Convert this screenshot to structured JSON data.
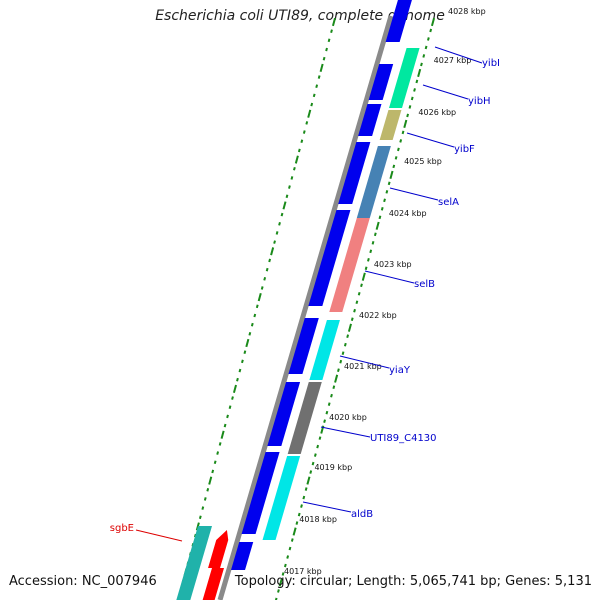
{
  "title": "Escherichia coli UTI89, complete genome",
  "footer": {
    "accession": "Accession: NC_007946",
    "summary": "Topology: circular; Length: 5,065,741 bp; Genes: 5,131"
  },
  "colors": {
    "backbone": "#888888",
    "cds_blue": "#0000ee",
    "tick_green": "#1a8a1a",
    "gene_label_blue": "#0000cc",
    "gene_label_red": "#dd0000"
  },
  "scale_labels": [
    "4028 kbp",
    "4027 kbp",
    "4026 kbp",
    "4025 kbp",
    "4024 kbp",
    "4023 kbp",
    "4022 kbp",
    "4021 kbp",
    "4020 kbp",
    "4019 kbp",
    "4018 kbp",
    "4017 kbp"
  ],
  "gene_labels": [
    {
      "text": "yibI",
      "color": "#0000cc"
    },
    {
      "text": "yibH",
      "color": "#0000cc"
    },
    {
      "text": "yibF",
      "color": "#0000cc"
    },
    {
      "text": "selA",
      "color": "#0000cc"
    },
    {
      "text": "selB",
      "color": "#0000cc"
    },
    {
      "text": "yiaY",
      "color": "#0000cc"
    },
    {
      "text": "UTI89_C4130",
      "color": "#0000cc"
    },
    {
      "text": "aldB",
      "color": "#0000cc"
    },
    {
      "text": "sgbE",
      "color": "#dd0000"
    }
  ],
  "feature_colors": {
    "yibI": "#00e8a0",
    "yibH": "#bdb76b",
    "selA": "#4682b4",
    "selB": "#f08080",
    "yiaY": "#00e6e6",
    "UTI89_C4130": "#707070",
    "aldB": "#00e6e6",
    "sgbE": "#20b2aa",
    "sgbE_rev": "#ff0000"
  }
}
